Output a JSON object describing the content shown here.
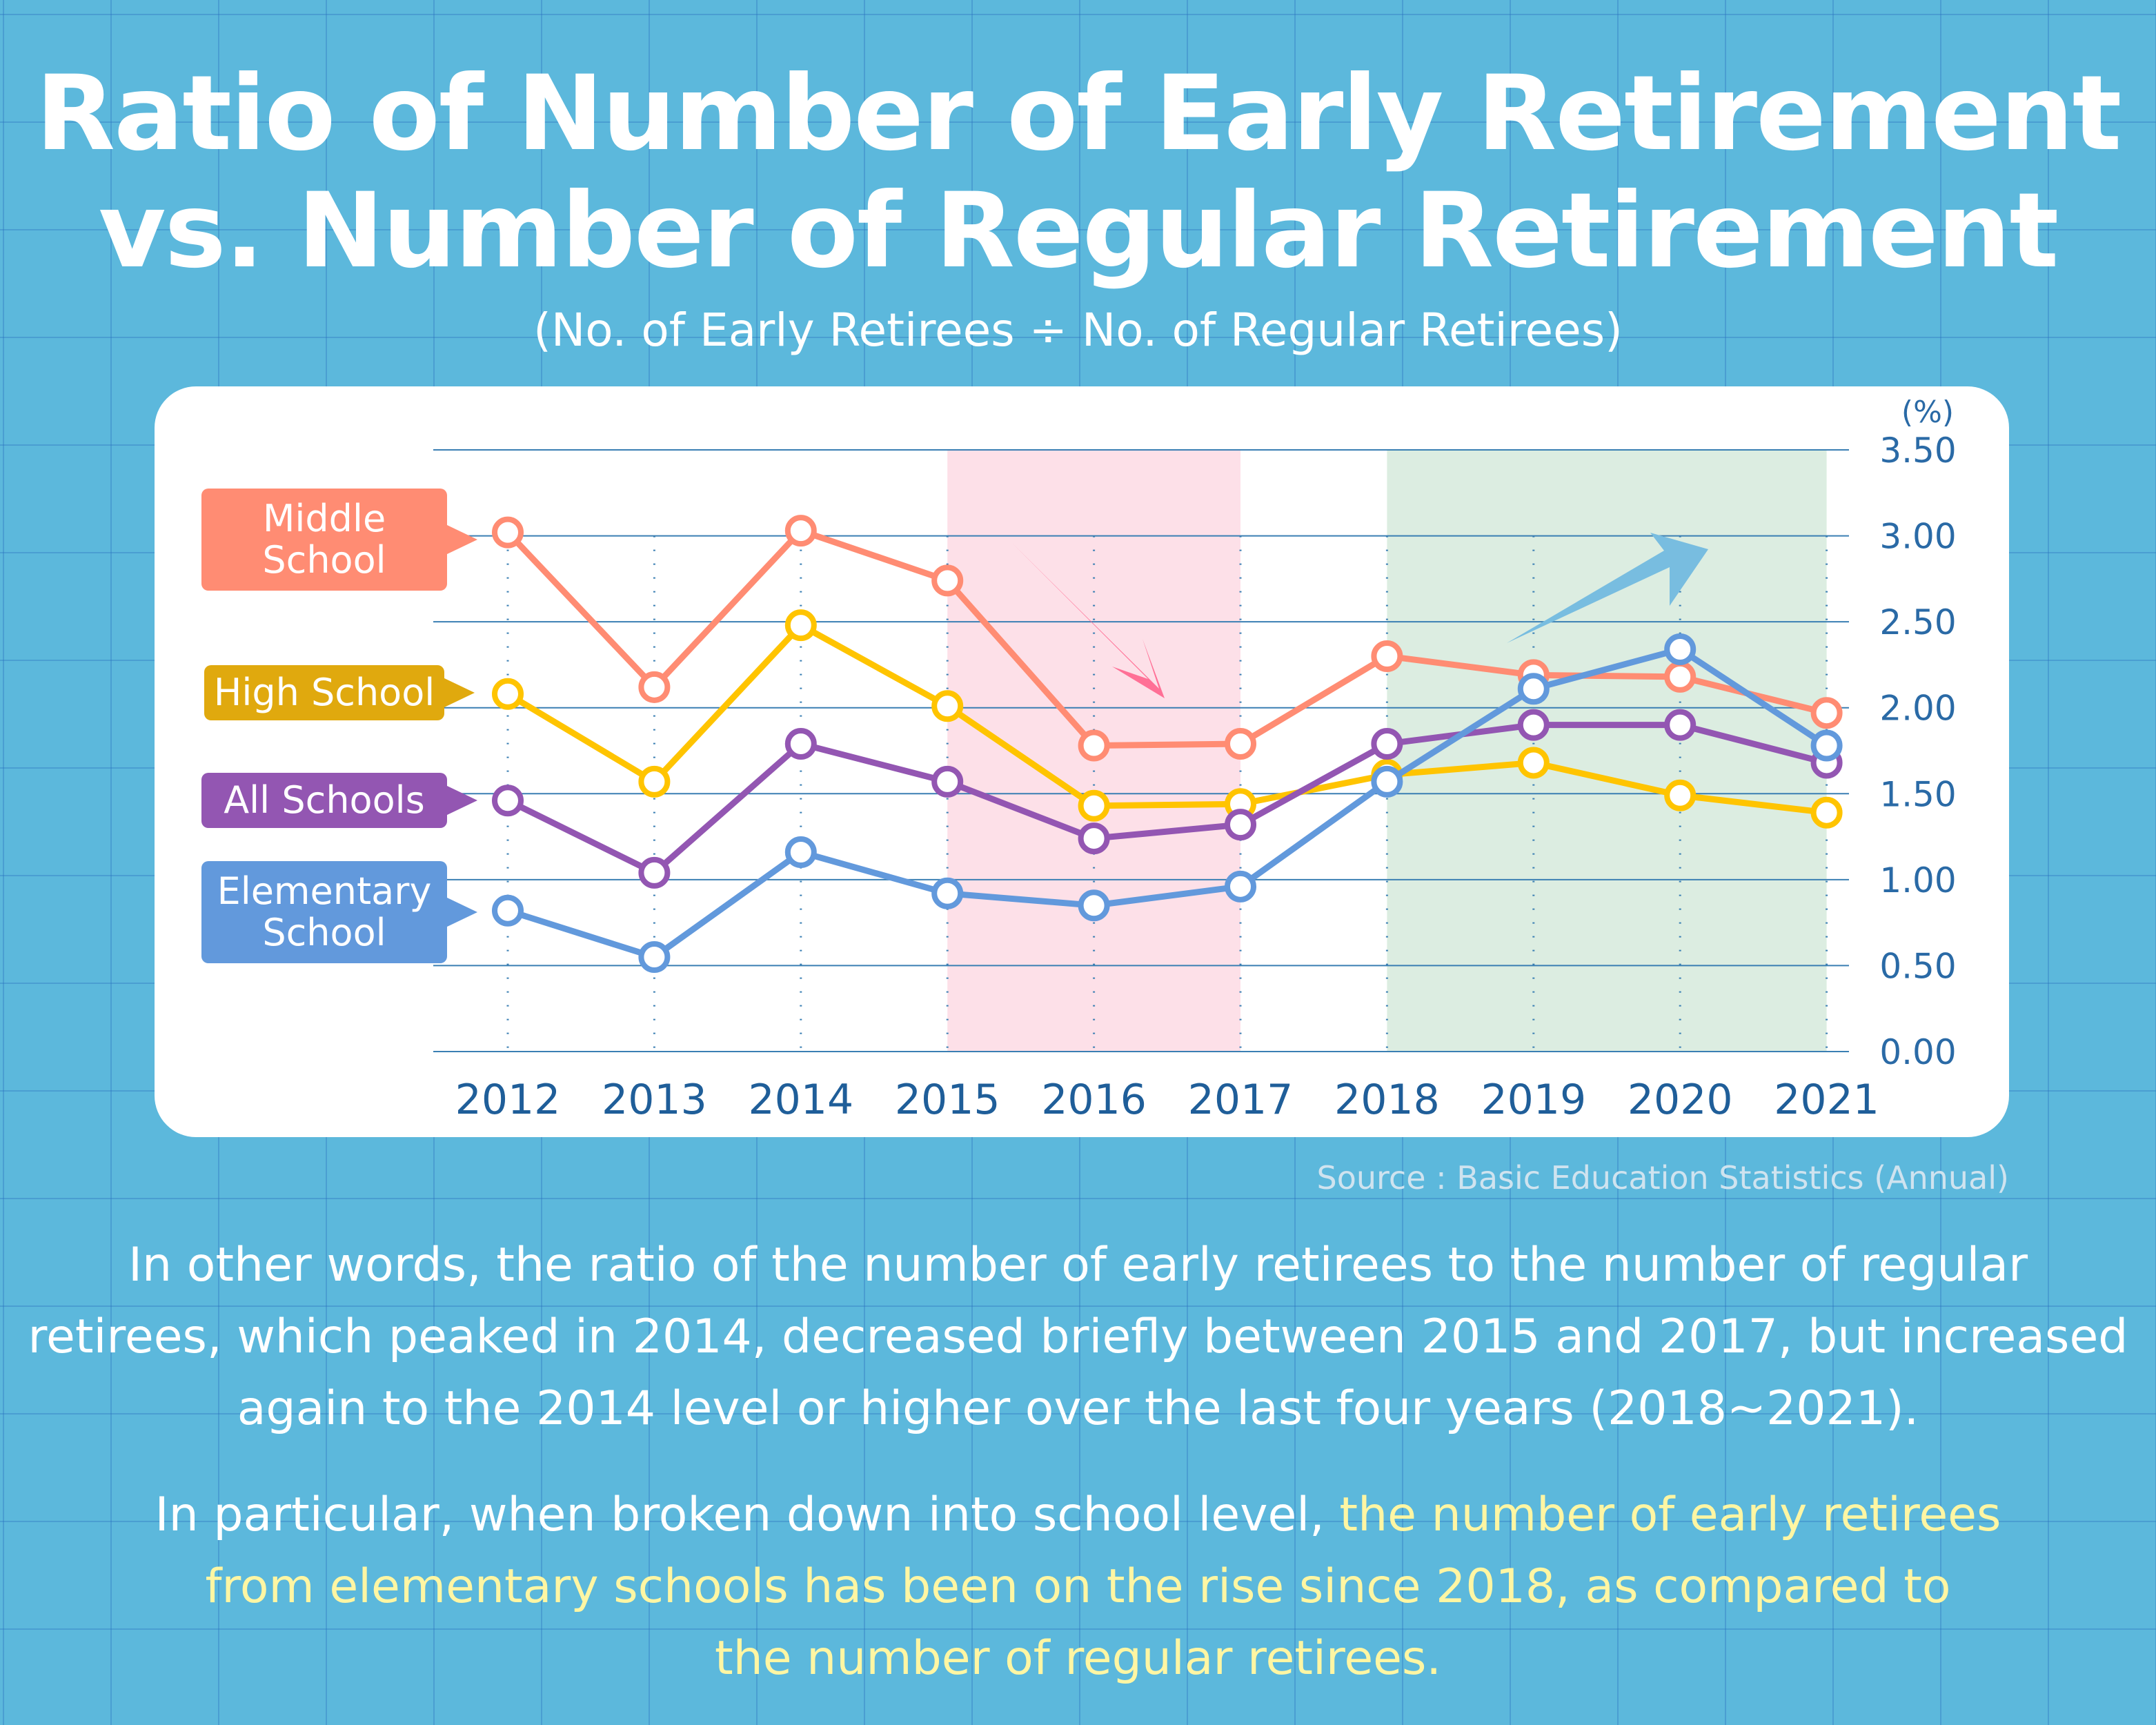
{
  "title_line1": "Ratio of Number of Early Retirement",
  "title_line2": "vs. Number of Regular Retirement",
  "subtitle": "(No. of Early Retirees ÷ No. of Regular Retirees)",
  "source": "Source : Basic Education Statistics (Annual)",
  "paragraph1": [
    "In other words, the ratio of the number of early retirees to the number of regular",
    "retirees, which peaked in 2014, decreased briefly between 2015 and 2017, but increased",
    "again to the 2014 level or higher over the last four years (2018~2021)."
  ],
  "paragraph2": {
    "line1_plain": "In particular, when broken down into school level, ",
    "line1_highlight": "the number of early retirees",
    "line2_highlight": "from elementary schools has been on the rise since 2018, as compared to",
    "line3_highlight": "the number of regular retirees."
  },
  "colors": {
    "highlight": "#fff6a3",
    "decline_band": "#fde0e8",
    "rise_band": "#dcede1",
    "decline_arrow": "#ff7096",
    "rise_arrow": "#78bde0"
  },
  "chart_data": {
    "type": "line",
    "unit_label": "(%)",
    "ylim": [
      0,
      3.5
    ],
    "yticks": [
      "0.00",
      "0.50",
      "1.00",
      "1.50",
      "2.00",
      "2.50",
      "3.00",
      "3.50"
    ],
    "categories": [
      "2012",
      "2013",
      "2014",
      "2015",
      "2016",
      "2017",
      "2018",
      "2019",
      "2020",
      "2021"
    ],
    "highlight_ranges": [
      {
        "from": "2015",
        "to": "2017",
        "meaning": "decrease"
      },
      {
        "from": "2018",
        "to": "2021",
        "meaning": "increase"
      }
    ],
    "series": [
      {
        "name": "Middle School",
        "label_lines": [
          "Middle",
          "School"
        ],
        "color": "#ff8c73",
        "label_color": "#ff8c73",
        "values": [
          3.02,
          2.12,
          3.03,
          2.74,
          1.78,
          1.79,
          2.3,
          2.19,
          2.18,
          1.97
        ]
      },
      {
        "name": "High School",
        "label_lines": [
          "High School"
        ],
        "color": "#ffc400",
        "label_color": "#e0a90e",
        "values": [
          2.08,
          1.57,
          2.48,
          2.01,
          1.43,
          1.44,
          1.61,
          1.68,
          1.49,
          1.39
        ]
      },
      {
        "name": "All Schools",
        "label_lines": [
          "All Schools"
        ],
        "color": "#9356b2",
        "label_color": "#9356b2",
        "values": [
          1.46,
          1.04,
          1.79,
          1.57,
          1.24,
          1.32,
          1.79,
          1.9,
          1.9,
          1.68
        ]
      },
      {
        "name": "Elementary School",
        "label_lines": [
          "Elementary",
          "School"
        ],
        "color": "#6299dc",
        "label_color": "#6299dc",
        "values": [
          0.82,
          0.55,
          1.16,
          0.92,
          0.85,
          0.96,
          1.57,
          2.11,
          2.34,
          1.78
        ]
      }
    ]
  }
}
